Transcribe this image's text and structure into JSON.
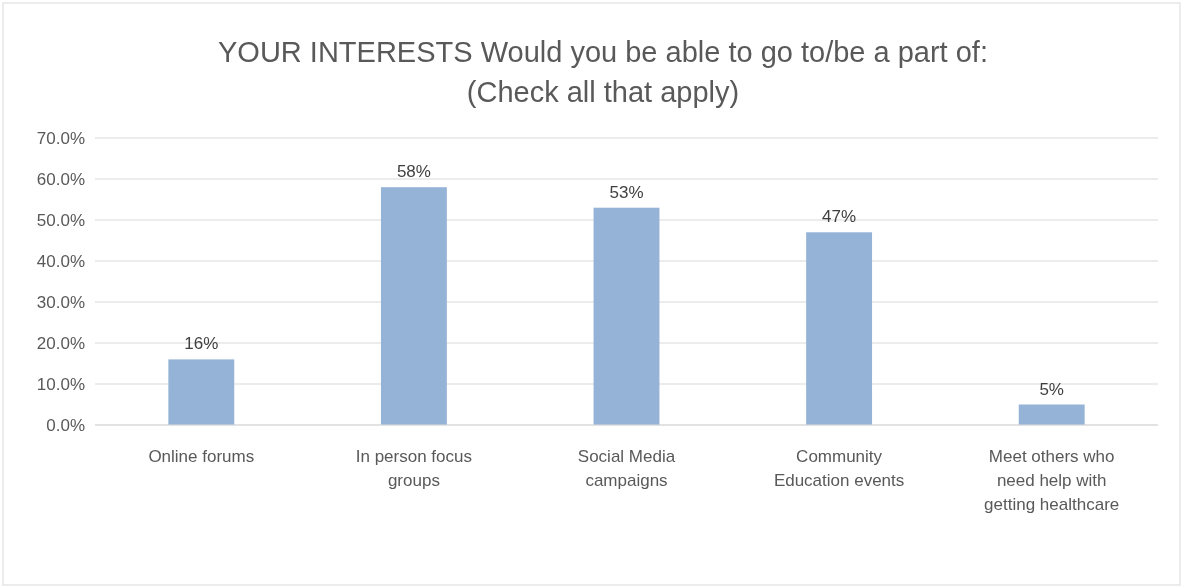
{
  "chart_data": {
    "type": "bar",
    "title": "YOUR INTERESTS  Would you be able to go to/be a part of: (Check all that apply)",
    "categories": [
      "Online forums",
      "In person focus groups",
      "Social Media campaigns",
      "Community Education events",
      "Meet others who need help with getting healthcare"
    ],
    "values": [
      16,
      58,
      53,
      47,
      5
    ],
    "value_labels": [
      "16%",
      "58%",
      "53%",
      "47%",
      "5%"
    ],
    "color": "#95b3d7",
    "ylim": [
      0,
      70
    ],
    "yticks": [
      {
        "value": 0,
        "label": "0.0%"
      },
      {
        "value": 10,
        "label": "10.0%"
      },
      {
        "value": 20,
        "label": "20.0%"
      },
      {
        "value": 30,
        "label": "30.0%"
      },
      {
        "value": 40,
        "label": "40.0%"
      },
      {
        "value": 50,
        "label": "50.0%"
      },
      {
        "value": 60,
        "label": "60.0%"
      },
      {
        "value": 70,
        "label": "70.0%"
      }
    ],
    "grid": "y"
  }
}
